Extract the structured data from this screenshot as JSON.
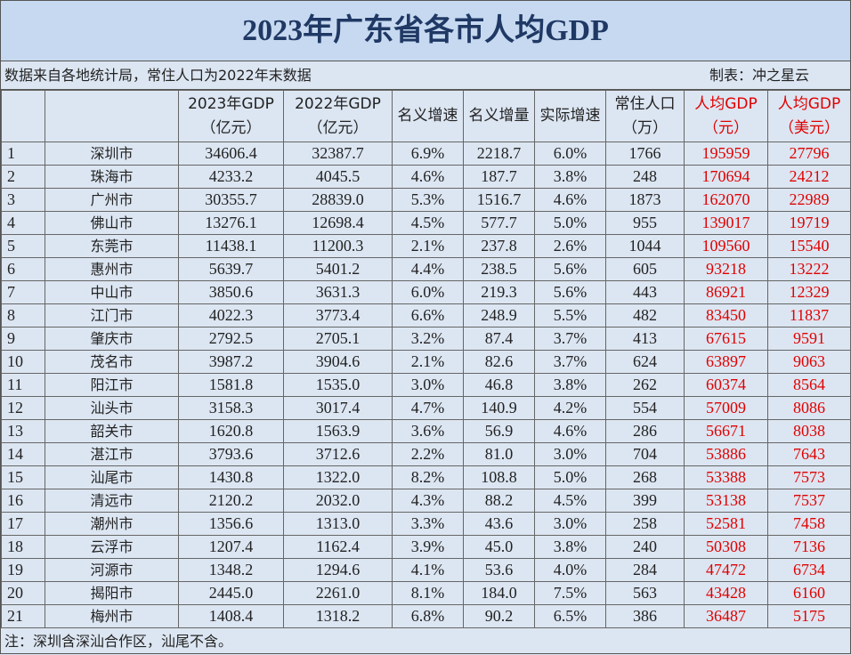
{
  "title": "2023年广东省各市人均GDP",
  "info": {
    "source": "数据来自各地统计局，常住人口为2022年末数据",
    "author": "制表：冲之星云"
  },
  "table": {
    "headers": [
      [],
      [],
      [
        "2023年GDP",
        "（亿元）"
      ],
      [
        "2022年GDP",
        "（亿元）"
      ],
      [
        "名义增速"
      ],
      [
        "名义增量"
      ],
      [
        "实际增速"
      ],
      [
        "常住人口",
        "（万）"
      ],
      [
        "人均GDP",
        "（元）"
      ],
      [
        "人均GDP",
        "（美元）"
      ]
    ],
    "rows": [
      [
        "1",
        "深圳市",
        "34606.4",
        "32387.7",
        "6.9%",
        "2218.7",
        "6.0%",
        "1766",
        "195959",
        "27796"
      ],
      [
        "2",
        "珠海市",
        "4233.2",
        "4045.5",
        "4.6%",
        "187.7",
        "3.8%",
        "248",
        "170694",
        "24212"
      ],
      [
        "3",
        "广州市",
        "30355.7",
        "28839.0",
        "5.3%",
        "1516.7",
        "4.6%",
        "1873",
        "162070",
        "22989"
      ],
      [
        "4",
        "佛山市",
        "13276.1",
        "12698.4",
        "4.5%",
        "577.7",
        "5.0%",
        "955",
        "139017",
        "19719"
      ],
      [
        "5",
        "东莞市",
        "11438.1",
        "11200.3",
        "2.1%",
        "237.8",
        "2.6%",
        "1044",
        "109560",
        "15540"
      ],
      [
        "6",
        "惠州市",
        "5639.7",
        "5401.2",
        "4.4%",
        "238.5",
        "5.6%",
        "605",
        "93218",
        "13222"
      ],
      [
        "7",
        "中山市",
        "3850.6",
        "3631.3",
        "6.0%",
        "219.3",
        "5.6%",
        "443",
        "86921",
        "12329"
      ],
      [
        "8",
        "江门市",
        "4022.3",
        "3773.4",
        "6.6%",
        "248.9",
        "5.5%",
        "482",
        "83450",
        "11837"
      ],
      [
        "9",
        "肇庆市",
        "2792.5",
        "2705.1",
        "3.2%",
        "87.4",
        "3.7%",
        "413",
        "67615",
        "9591"
      ],
      [
        "10",
        "茂名市",
        "3987.2",
        "3904.6",
        "2.1%",
        "82.6",
        "3.7%",
        "624",
        "63897",
        "9063"
      ],
      [
        "11",
        "阳江市",
        "1581.8",
        "1535.0",
        "3.0%",
        "46.8",
        "3.8%",
        "262",
        "60374",
        "8564"
      ],
      [
        "12",
        "汕头市",
        "3158.3",
        "3017.4",
        "4.7%",
        "140.9",
        "4.2%",
        "554",
        "57009",
        "8086"
      ],
      [
        "13",
        "韶关市",
        "1620.8",
        "1563.9",
        "3.6%",
        "56.9",
        "4.6%",
        "286",
        "56671",
        "8038"
      ],
      [
        "14",
        "湛江市",
        "3793.6",
        "3712.6",
        "2.2%",
        "81.0",
        "3.0%",
        "704",
        "53886",
        "7643"
      ],
      [
        "15",
        "汕尾市",
        "1430.8",
        "1322.0",
        "8.2%",
        "108.8",
        "5.0%",
        "268",
        "53388",
        "7573"
      ],
      [
        "16",
        "清远市",
        "2120.2",
        "2032.0",
        "4.3%",
        "88.2",
        "4.5%",
        "399",
        "53138",
        "7537"
      ],
      [
        "17",
        "潮州市",
        "1356.6",
        "1313.0",
        "3.3%",
        "43.6",
        "3.0%",
        "258",
        "52581",
        "7458"
      ],
      [
        "18",
        "云浮市",
        "1207.4",
        "1162.4",
        "3.9%",
        "45.0",
        "3.8%",
        "240",
        "50308",
        "7136"
      ],
      [
        "19",
        "河源市",
        "1348.2",
        "1294.6",
        "4.1%",
        "53.6",
        "4.0%",
        "284",
        "47472",
        "6734"
      ],
      [
        "20",
        "揭阳市",
        "2445.0",
        "2261.0",
        "8.1%",
        "184.0",
        "7.5%",
        "563",
        "43428",
        "6160"
      ],
      [
        "21",
        "梅州市",
        "1408.4",
        "1318.2",
        "6.8%",
        "90.2",
        "6.5%",
        "386",
        "36487",
        "5175"
      ]
    ]
  },
  "footer": "注：深圳含深汕合作区，汕尾不含。"
}
